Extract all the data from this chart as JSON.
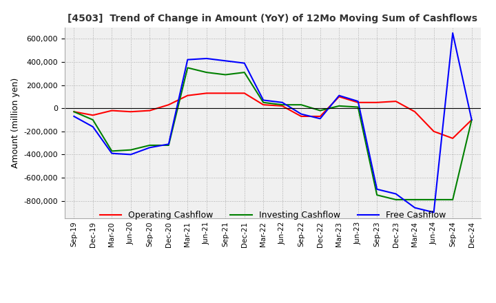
{
  "title": "[4503]  Trend of Change in Amount (YoY) of 12Mo Moving Sum of Cashflows",
  "ylabel": "Amount (million yen)",
  "ylim": [
    -950000,
    700000
  ],
  "yticks": [
    -800000,
    -600000,
    -400000,
    -200000,
    0,
    200000,
    400000,
    600000
  ],
  "x_labels": [
    "Sep-19",
    "Dec-19",
    "Mar-20",
    "Jun-20",
    "Sep-20",
    "Dec-20",
    "Mar-21",
    "Jun-21",
    "Sep-21",
    "Dec-21",
    "Mar-22",
    "Jun-22",
    "Sep-22",
    "Dec-22",
    "Mar-23",
    "Jun-23",
    "Sep-23",
    "Dec-23",
    "Mar-24",
    "Jun-24",
    "Sep-24",
    "Dec-24"
  ],
  "operating": [
    -30000,
    -60000,
    -20000,
    -30000,
    -20000,
    30000,
    110000,
    130000,
    130000,
    130000,
    30000,
    20000,
    -70000,
    -70000,
    100000,
    50000,
    50000,
    60000,
    -30000,
    -200000,
    -260000,
    -100000
  ],
  "investing": [
    -30000,
    -100000,
    -370000,
    -360000,
    -320000,
    -320000,
    350000,
    310000,
    290000,
    310000,
    50000,
    30000,
    30000,
    -20000,
    20000,
    10000,
    -750000,
    -790000,
    -790000,
    -790000,
    -790000,
    -100000
  ],
  "free": [
    -70000,
    -160000,
    -390000,
    -400000,
    -340000,
    -310000,
    420000,
    430000,
    410000,
    390000,
    70000,
    50000,
    -50000,
    -90000,
    110000,
    60000,
    -700000,
    -740000,
    -860000,
    -900000,
    650000,
    -100000
  ],
  "operating_color": "#ff0000",
  "investing_color": "#008000",
  "free_color": "#0000ff",
  "background_color": "#ffffff",
  "plot_bg_color": "#f0f0f0",
  "grid_color": "#aaaaaa"
}
